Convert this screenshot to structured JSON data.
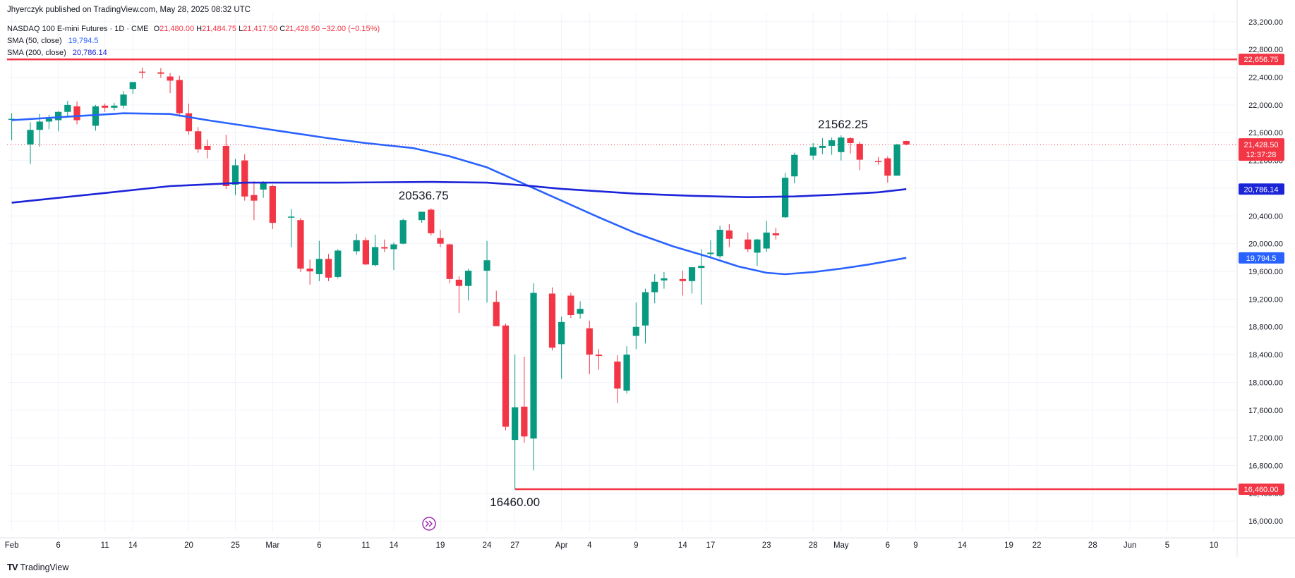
{
  "header": {
    "published": "Jhyerczyk published on TradingView.com, May 28, 2025 08:32 UTC",
    "symbol": "NASDAQ 100 E-mini Futures · 1D · CME",
    "o_label": "O",
    "o_value": "21,480.00",
    "h_label": "H",
    "h_value": "21,484.75",
    "l_label": "L",
    "l_value": "21,417.50",
    "c_label": "C",
    "c_value": "21,428.50",
    "change": "−32.00 (−0.15%)",
    "sma50_label": "SMA (50, close)",
    "sma50_value": "19,794.5",
    "sma200_label": "SMA (200, close)",
    "sma200_value": "20,786.14"
  },
  "brand": {
    "logo": "TV",
    "name": "TradingView"
  },
  "colors": {
    "up": "#089981",
    "down": "#f23645",
    "sma50": "#2962ff",
    "sma200": "#1c24d8",
    "level": "#f23645",
    "grid": "#f0f3fa",
    "text": "#131722"
  },
  "chart_data": {
    "type": "candlestick",
    "y_axis": {
      "ticks": [
        "16,000.00",
        "16,400.00",
        "16,800.00",
        "17,200.00",
        "17,600.00",
        "18,000.00",
        "18,400.00",
        "18,800.00",
        "19,200.00",
        "19,600.00",
        "20,000.00",
        "20,400.00",
        "20,800.00",
        "21,200.00",
        "21,600.00",
        "22,000.00",
        "22,400.00",
        "22,800.00",
        "23,200.00"
      ],
      "tick_values": [
        16000,
        16400,
        16800,
        17200,
        17600,
        18000,
        18400,
        18800,
        19200,
        19600,
        20000,
        20400,
        20800,
        21200,
        21600,
        22000,
        22400,
        22800,
        23200
      ],
      "range": [
        15850,
        23330
      ]
    },
    "x_axis": {
      "labels": [
        {
          "text": "Feb",
          "d": 0
        },
        {
          "text": "6",
          "d": 5
        },
        {
          "text": "11",
          "d": 10
        },
        {
          "text": "14",
          "d": 13
        },
        {
          "text": "20",
          "d": 19
        },
        {
          "text": "25",
          "d": 24
        },
        {
          "text": "Mar",
          "d": 28
        },
        {
          "text": "6",
          "d": 33
        },
        {
          "text": "11",
          "d": 38
        },
        {
          "text": "14",
          "d": 41
        },
        {
          "text": "19",
          "d": 46
        },
        {
          "text": "24",
          "d": 51
        },
        {
          "text": "27",
          "d": 54
        },
        {
          "text": "Apr",
          "d": 59
        },
        {
          "text": "4",
          "d": 62
        },
        {
          "text": "9",
          "d": 67
        },
        {
          "text": "14",
          "d": 72
        },
        {
          "text": "17",
          "d": 75
        },
        {
          "text": "23",
          "d": 81
        },
        {
          "text": "28",
          "d": 86
        },
        {
          "text": "May",
          "d": 89
        },
        {
          "text": "6",
          "d": 94
        },
        {
          "text": "9",
          "d": 97
        },
        {
          "text": "14",
          "d": 102
        },
        {
          "text": "19",
          "d": 107
        },
        {
          "text": "22",
          "d": 110
        },
        {
          "text": "28",
          "d": 116
        },
        {
          "text": "Jun",
          "d": 120
        },
        {
          "text": "5",
          "d": 124
        },
        {
          "text": "10",
          "d": 129
        }
      ],
      "range_days": [
        -0.5,
        131.5
      ]
    },
    "candles": [
      {
        "d": 0,
        "o": 21800,
        "h": 21880,
        "l": 21490,
        "c": 21800
      },
      {
        "d": 2,
        "o": 21430,
        "h": 21750,
        "l": 21150,
        "c": 21640
      },
      {
        "d": 3,
        "o": 21640,
        "h": 21870,
        "l": 21400,
        "c": 21760
      },
      {
        "d": 4,
        "o": 21760,
        "h": 21860,
        "l": 21650,
        "c": 21800
      },
      {
        "d": 5,
        "o": 21780,
        "h": 21910,
        "l": 21620,
        "c": 21900
      },
      {
        "d": 6,
        "o": 21900,
        "h": 22060,
        "l": 21830,
        "c": 22000
      },
      {
        "d": 7,
        "o": 21980,
        "h": 22050,
        "l": 21720,
        "c": 21780
      },
      {
        "d": 9,
        "o": 21700,
        "h": 22000,
        "l": 21630,
        "c": 21980
      },
      {
        "d": 10,
        "o": 21990,
        "h": 22020,
        "l": 21900,
        "c": 21960
      },
      {
        "d": 11,
        "o": 21960,
        "h": 22030,
        "l": 21920,
        "c": 21990
      },
      {
        "d": 12,
        "o": 21990,
        "h": 22200,
        "l": 21950,
        "c": 22150
      },
      {
        "d": 13,
        "o": 22230,
        "h": 22330,
        "l": 22160,
        "c": 22330
      },
      {
        "d": 14,
        "o": 22480,
        "h": 22540,
        "l": 22380,
        "c": 22470
      },
      {
        "d": 16,
        "o": 22470,
        "h": 22530,
        "l": 22390,
        "c": 22450
      },
      {
        "d": 17,
        "o": 22410,
        "h": 22460,
        "l": 22170,
        "c": 22350
      },
      {
        "d": 18,
        "o": 22360,
        "h": 22420,
        "l": 21830,
        "c": 21880
      },
      {
        "d": 19,
        "o": 21880,
        "h": 22020,
        "l": 21570,
        "c": 21620
      },
      {
        "d": 20,
        "o": 21620,
        "h": 21680,
        "l": 21310,
        "c": 21360
      },
      {
        "d": 21,
        "o": 21410,
        "h": 21500,
        "l": 21230,
        "c": 21350
      },
      {
        "d": 23,
        "o": 21410,
        "h": 21570,
        "l": 20790,
        "c": 20830
      },
      {
        "d": 24,
        "o": 20850,
        "h": 21220,
        "l": 20700,
        "c": 21130
      },
      {
        "d": 25,
        "o": 21200,
        "h": 21290,
        "l": 20620,
        "c": 20680
      },
      {
        "d": 26,
        "o": 20700,
        "h": 20900,
        "l": 20340,
        "c": 20620
      },
      {
        "d": 27,
        "o": 20780,
        "h": 20900,
        "l": 20660,
        "c": 20870
      },
      {
        "d": 28,
        "o": 20830,
        "h": 20850,
        "l": 20210,
        "c": 20300
      },
      {
        "d": 30,
        "o": 20390,
        "h": 20500,
        "l": 19950,
        "c": 20390
      },
      {
        "d": 31,
        "o": 20340,
        "h": 20370,
        "l": 19590,
        "c": 19640
      },
      {
        "d": 32,
        "o": 19640,
        "h": 19770,
        "l": 19410,
        "c": 19600
      },
      {
        "d": 33,
        "o": 19560,
        "h": 20040,
        "l": 19460,
        "c": 19780
      },
      {
        "d": 34,
        "o": 19780,
        "h": 19850,
        "l": 19460,
        "c": 19510
      },
      {
        "d": 35,
        "o": 19520,
        "h": 19920,
        "l": 19500,
        "c": 19900
      },
      {
        "d": 37,
        "o": 19890,
        "h": 20140,
        "l": 19840,
        "c": 20050
      },
      {
        "d": 38,
        "o": 20050,
        "h": 20090,
        "l": 19690,
        "c": 19700
      },
      {
        "d": 39,
        "o": 19690,
        "h": 20130,
        "l": 19670,
        "c": 19950
      },
      {
        "d": 40,
        "o": 19950,
        "h": 20060,
        "l": 19880,
        "c": 19930
      },
      {
        "d": 41,
        "o": 19920,
        "h": 20020,
        "l": 19620,
        "c": 19990
      },
      {
        "d": 42,
        "o": 20000,
        "h": 20360,
        "l": 19990,
        "c": 20340
      },
      {
        "d": 44,
        "o": 20340,
        "h": 20460,
        "l": 20300,
        "c": 20460
      },
      {
        "d": 45,
        "o": 20490,
        "h": 20510,
        "l": 20120,
        "c": 20150
      },
      {
        "d": 46,
        "o": 20080,
        "h": 20200,
        "l": 19950,
        "c": 20000
      },
      {
        "d": 47,
        "o": 19990,
        "h": 20000,
        "l": 19430,
        "c": 19490
      },
      {
        "d": 48,
        "o": 19480,
        "h": 19530,
        "l": 19000,
        "c": 19390
      },
      {
        "d": 49,
        "o": 19390,
        "h": 19640,
        "l": 19180,
        "c": 19610
      },
      {
        "d": 51,
        "o": 19610,
        "h": 20040,
        "l": 19150,
        "c": 19760
      },
      {
        "d": 52,
        "o": 19160,
        "h": 19320,
        "l": 18830,
        "c": 18810
      },
      {
        "d": 53,
        "o": 18820,
        "h": 18850,
        "l": 17310,
        "c": 17360
      },
      {
        "d": 54,
        "o": 17170,
        "h": 18400,
        "l": 16460,
        "c": 17640
      },
      {
        "d": 55,
        "o": 17650,
        "h": 18370,
        "l": 17130,
        "c": 17220
      },
      {
        "d": 56,
        "o": 17190,
        "h": 19430,
        "l": 16730,
        "c": 19290
      },
      {
        "d": 58,
        "o": 19280,
        "h": 19370,
        "l": 18460,
        "c": 18500
      },
      {
        "d": 59,
        "o": 18550,
        "h": 18950,
        "l": 18050,
        "c": 18870
      },
      {
        "d": 60,
        "o": 19250,
        "h": 19290,
        "l": 18930,
        "c": 18970
      },
      {
        "d": 61,
        "o": 18990,
        "h": 19170,
        "l": 18920,
        "c": 19060
      },
      {
        "d": 62,
        "o": 18780,
        "h": 18890,
        "l": 18120,
        "c": 18400
      },
      {
        "d": 63,
        "o": 18400,
        "h": 18480,
        "l": 18180,
        "c": 18380
      },
      {
        "d": 65,
        "o": 18300,
        "h": 18390,
        "l": 17700,
        "c": 17910
      },
      {
        "d": 66,
        "o": 17880,
        "h": 18520,
        "l": 17840,
        "c": 18400
      },
      {
        "d": 67,
        "o": 18670,
        "h": 19150,
        "l": 18480,
        "c": 18800
      },
      {
        "d": 68,
        "o": 18820,
        "h": 19350,
        "l": 18560,
        "c": 19300
      },
      {
        "d": 69,
        "o": 19300,
        "h": 19560,
        "l": 19140,
        "c": 19450
      },
      {
        "d": 70,
        "o": 19470,
        "h": 19590,
        "l": 19350,
        "c": 19500
      },
      {
        "d": 72,
        "o": 19490,
        "h": 19610,
        "l": 19250,
        "c": 19460
      },
      {
        "d": 73,
        "o": 19460,
        "h": 19640,
        "l": 19280,
        "c": 19660
      },
      {
        "d": 74,
        "o": 19650,
        "h": 19920,
        "l": 19120,
        "c": 19680
      },
      {
        "d": 75,
        "o": 19850,
        "h": 20050,
        "l": 19800,
        "c": 19870
      },
      {
        "d": 76,
        "o": 19820,
        "h": 20260,
        "l": 19790,
        "c": 20200
      },
      {
        "d": 77,
        "o": 20190,
        "h": 20280,
        "l": 19950,
        "c": 20070
      },
      {
        "d": 79,
        "o": 20060,
        "h": 20160,
        "l": 19880,
        "c": 19920
      },
      {
        "d": 80,
        "o": 19870,
        "h": 20070,
        "l": 19680,
        "c": 20060
      },
      {
        "d": 81,
        "o": 19930,
        "h": 20330,
        "l": 19880,
        "c": 20160
      },
      {
        "d": 82,
        "o": 20150,
        "h": 20230,
        "l": 20060,
        "c": 20120
      },
      {
        "d": 83,
        "o": 20380,
        "h": 21020,
        "l": 20370,
        "c": 20950
      },
      {
        "d": 84,
        "o": 20970,
        "h": 21310,
        "l": 20870,
        "c": 21280
      },
      {
        "d": 86,
        "o": 21270,
        "h": 21450,
        "l": 21210,
        "c": 21390
      },
      {
        "d": 87,
        "o": 21380,
        "h": 21520,
        "l": 21290,
        "c": 21410
      },
      {
        "d": 88,
        "o": 21410,
        "h": 21530,
        "l": 21280,
        "c": 21490
      },
      {
        "d": 89,
        "o": 21320,
        "h": 21562,
        "l": 21200,
        "c": 21530
      },
      {
        "d": 90,
        "o": 21520,
        "h": 21540,
        "l": 21300,
        "c": 21450
      },
      {
        "d": 91,
        "o": 21440,
        "h": 21470,
        "l": 21060,
        "c": 21210
      },
      {
        "d": 93,
        "o": 21190,
        "h": 21250,
        "l": 21140,
        "c": 21180
      },
      {
        "d": 94,
        "o": 21230,
        "h": 21260,
        "l": 20880,
        "c": 20980
      },
      {
        "d": 95,
        "o": 20980,
        "h": 21440,
        "l": 20980,
        "c": 21430
      },
      {
        "d": 96,
        "o": 21480,
        "h": 21485,
        "l": 21418,
        "c": 21428
      }
    ],
    "series": [
      {
        "name": "SMA (50, close)",
        "color": "#2962ff",
        "points": [
          [
            0,
            21780
          ],
          [
            12,
            21880
          ],
          [
            17,
            21870
          ],
          [
            21,
            21780
          ],
          [
            25,
            21700
          ],
          [
            29,
            21620
          ],
          [
            34,
            21520
          ],
          [
            38,
            21450
          ],
          [
            43,
            21380
          ],
          [
            47,
            21260
          ],
          [
            51,
            21100
          ],
          [
            55,
            20860
          ],
          [
            59,
            20620
          ],
          [
            63,
            20380
          ],
          [
            67,
            20150
          ],
          [
            71,
            19960
          ],
          [
            75,
            19800
          ],
          [
            78,
            19670
          ],
          [
            81,
            19580
          ],
          [
            83,
            19560
          ],
          [
            86,
            19590
          ],
          [
            89,
            19640
          ],
          [
            92,
            19700
          ],
          [
            96,
            19795
          ]
        ]
      },
      {
        "name": "SMA (200, close)",
        "color": "#1c24d8",
        "points": [
          [
            0,
            20590
          ],
          [
            10,
            20730
          ],
          [
            17,
            20830
          ],
          [
            25,
            20880
          ],
          [
            35,
            20880
          ],
          [
            45,
            20890
          ],
          [
            51,
            20880
          ],
          [
            55,
            20840
          ],
          [
            59,
            20790
          ],
          [
            67,
            20720
          ],
          [
            73,
            20690
          ],
          [
            79,
            20670
          ],
          [
            84,
            20680
          ],
          [
            89,
            20710
          ],
          [
            93,
            20740
          ],
          [
            96,
            20786
          ]
        ]
      }
    ],
    "levels": [
      {
        "value": 22656.75,
        "label": "22,656.75",
        "from_d": -0.5
      },
      {
        "value": 16460,
        "label": "16,460.00",
        "from_d": 54
      }
    ],
    "annotations": [
      {
        "text": "20536.75",
        "d": 44.2,
        "y": 20536.75
      },
      {
        "text": "16460.00",
        "d": 54,
        "y": 16460
      },
      {
        "text": "21562.25",
        "d": 89.2,
        "y": 21562.25
      }
    ],
    "last_price": {
      "value": 21428.5,
      "label": "21,428.50",
      "countdown": "12:37:28"
    },
    "sma_tags": [
      {
        "value": 20786.14,
        "label": "20,786.14",
        "color": "#1c24d8"
      },
      {
        "value": 19794.5,
        "label": "19,794.5",
        "color": "#2962ff"
      }
    ],
    "grid": true
  }
}
